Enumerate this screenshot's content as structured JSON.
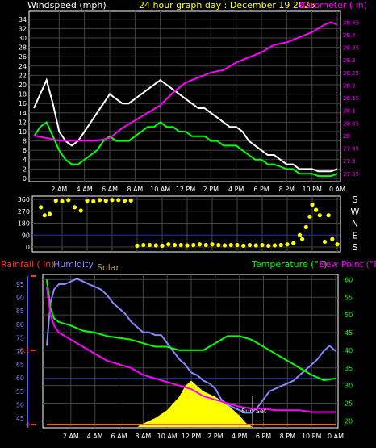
{
  "chart_data": [
    {
      "type": "line",
      "title": "24 hour graph day : December 19 2025",
      "left_axis_label": "Windspeed (mph)",
      "right_axis_label": "Barometer ( in)",
      "x_tick_labels": [
        "2 AM",
        "4 AM",
        "6 AM",
        "8 AM",
        "10 AM",
        "12 PM",
        "2 PM",
        "4 PM",
        "6 PM",
        "8 PM",
        "10 PM",
        "0 AM"
      ],
      "x_hours": [
        2,
        4,
        6,
        8,
        10,
        12,
        14,
        16,
        18,
        20,
        22,
        24
      ],
      "left_ylim": [
        0,
        35
      ],
      "left_ticks": [
        0,
        2,
        4,
        6,
        8,
        10,
        12,
        14,
        16,
        18,
        20,
        22,
        24,
        26,
        28,
        30,
        32,
        34
      ],
      "right_ylim": [
        27.83,
        28.48
      ],
      "right_ticks": [
        27.85,
        27.9,
        27.95,
        28,
        28.05,
        28.1,
        28.15,
        28.2,
        28.25,
        28.3,
        28.35,
        28.4,
        28.45
      ],
      "right_tick_labels": [
        "27.85",
        "27.9",
        "27.95",
        "28",
        "28.05",
        "28.1",
        "28.15",
        "28.2",
        "28.25",
        "28.3",
        "28.35",
        "28.4",
        "28.45"
      ],
      "series": [
        {
          "role": "gust",
          "color": "#ffffff",
          "x": [
            0,
            0.5,
            1,
            1.5,
            2,
            2.5,
            3,
            3.5,
            4,
            4.5,
            5,
            5.5,
            6,
            6.5,
            7,
            7.5,
            8,
            8.5,
            9,
            9.5,
            10,
            10.5,
            11,
            11.5,
            12,
            12.5,
            13,
            13.5,
            14,
            14.5,
            15,
            15.5,
            16,
            16.5,
            17,
            17.5,
            18,
            18.5,
            19,
            19.5,
            20,
            20.5,
            21,
            21.5,
            22,
            22.5,
            23,
            23.5,
            24
          ],
          "y": [
            15,
            18,
            21,
            16,
            10,
            8,
            7,
            8,
            10,
            12,
            14,
            16,
            18,
            17,
            16,
            16,
            17,
            18,
            19,
            20,
            21,
            20,
            19,
            18,
            17,
            16,
            15,
            15,
            14,
            13,
            12,
            11,
            11,
            10,
            8,
            7,
            6,
            5,
            5,
            4,
            3,
            3,
            2,
            2,
            2,
            1.5,
            1.5,
            1.5,
            2
          ]
        },
        {
          "role": "average",
          "color": "#00ff00",
          "x": [
            0,
            0.5,
            1,
            1.5,
            2,
            2.5,
            3,
            3.5,
            4,
            4.5,
            5,
            5.5,
            6,
            6.5,
            7,
            7.5,
            8,
            8.5,
            9,
            9.5,
            10,
            10.5,
            11,
            11.5,
            12,
            12.5,
            13,
            13.5,
            14,
            14.5,
            15,
            15.5,
            16,
            16.5,
            17,
            17.5,
            18,
            18.5,
            19,
            19.5,
            20,
            20.5,
            21,
            21.5,
            22,
            22.5,
            23,
            23.5,
            24
          ],
          "y": [
            9,
            11,
            12,
            9,
            6,
            4,
            3,
            3,
            4,
            5,
            6,
            8,
            9,
            8,
            8,
            8,
            9,
            10,
            11,
            11,
            12,
            11,
            11,
            10,
            10,
            9,
            9,
            9,
            8,
            8,
            7,
            7,
            7,
            6,
            5,
            4,
            4,
            3,
            3,
            2.5,
            2,
            2,
            1,
            1,
            1,
            0.5,
            0.5,
            0.5,
            1
          ]
        },
        {
          "role": "barometer",
          "axis": "right",
          "color": "#ff00ff",
          "x": [
            0,
            1,
            2,
            3,
            4,
            5,
            6,
            7,
            8,
            9,
            10,
            11,
            12,
            13,
            14,
            15,
            16,
            17,
            18,
            19,
            20,
            21,
            22,
            23,
            23.5,
            24
          ],
          "y": [
            28.0,
            27.99,
            27.98,
            27.98,
            27.98,
            27.98,
            27.99,
            28.03,
            28.06,
            28.09,
            28.12,
            28.17,
            28.21,
            28.23,
            28.25,
            28.26,
            28.29,
            28.31,
            28.33,
            28.36,
            28.37,
            28.39,
            28.41,
            28.44,
            28.45,
            28.44
          ]
        }
      ]
    },
    {
      "type": "scatter",
      "title": "",
      "left_ticks": [
        0,
        90,
        180,
        270,
        360
      ],
      "ylim": [
        0,
        360
      ],
      "compass_labels": [
        "S",
        "E",
        "N",
        "W",
        "S"
      ],
      "series": [
        {
          "role": "direction",
          "color": "#ffff00",
          "x": [
            0.3,
            0.6,
            1,
            1.5,
            2,
            2.5,
            3,
            3.5,
            4,
            4.5,
            5,
            5.5,
            6,
            6.5,
            7,
            7.5,
            8,
            8.5,
            9,
            9.5,
            10,
            10.5,
            11,
            11.5,
            12,
            12.5,
            13,
            13.5,
            14,
            14.5,
            15,
            15.5,
            16,
            16.5,
            17,
            17.5,
            18,
            18.5,
            19,
            19.5,
            20,
            20.5,
            21,
            21.2,
            21.5,
            21.8,
            22,
            22.3,
            22.6,
            23,
            23.3,
            23.6,
            24
          ],
          "y": [
            300,
            240,
            250,
            350,
            345,
            355,
            300,
            275,
            350,
            345,
            355,
            350,
            355,
            355,
            350,
            352,
            10,
            15,
            15,
            12,
            10,
            20,
            15,
            15,
            12,
            15,
            20,
            15,
            20,
            15,
            12,
            15,
            15,
            10,
            15,
            12,
            15,
            10,
            12,
            15,
            20,
            30,
            90,
            60,
            150,
            230,
            320,
            280,
            240,
            40,
            240,
            60,
            20
          ]
        }
      ]
    },
    {
      "type": "line",
      "title": "",
      "labels": {
        "rainfall": "Rainfall ( in)",
        "humidity": "Humidity",
        "solar": "Solar",
        "temperature": "Temperature (°F)",
        "dewpoint": "Dew Point (°F)",
        "sunset": "Sun Set"
      },
      "x_tick_labels": [
        "2 AM",
        "4 AM",
        "6 AM",
        "8 AM",
        "10 AM",
        "12 PM",
        "2 PM",
        "4 PM",
        "6 PM",
        "8 PM",
        "10 PM",
        "0 AM"
      ],
      "x_hours": [
        2,
        4,
        6,
        8,
        10,
        12,
        14,
        16,
        18,
        20,
        22,
        24
      ],
      "humidity_ylim": [
        42,
        98
      ],
      "humidity_ticks": [
        45,
        50,
        55,
        60,
        65,
        70,
        75,
        80,
        85,
        90,
        95
      ],
      "temp_ylim": [
        18.5,
        61
      ],
      "temp_ticks": [
        20,
        25,
        30,
        35,
        40,
        45,
        50,
        55,
        60
      ],
      "rain_ticks": [
        {
          "value": 0,
          "label": "0"
        },
        {
          "value": 0.1,
          "label": "0.1"
        },
        {
          "value": 0.2,
          "label": ""
        }
      ],
      "rain_ylim": [
        0,
        0.2
      ],
      "freeze_line_f": 32,
      "sunset_hour": 17.1,
      "rainfall": {
        "x": [
          0,
          24
        ],
        "y": [
          0,
          0
        ]
      },
      "series": [
        {
          "role": "humidity",
          "color": "#8888ff",
          "x": [
            0,
            0.3,
            0.6,
            1,
            1.5,
            2,
            2.5,
            3,
            3.5,
            4,
            4.5,
            5,
            5.5,
            6,
            6.5,
            7,
            7.5,
            8,
            8.5,
            9,
            9.5,
            10,
            10.5,
            11,
            11.5,
            12,
            12.5,
            13,
            13.5,
            14,
            14.5,
            15,
            15.5,
            16,
            16.5,
            17,
            17.5,
            18,
            18.5,
            19,
            19.5,
            20,
            20.5,
            21,
            21.5,
            22,
            22.5,
            23,
            23.5,
            24
          ],
          "y": [
            72,
            88,
            93,
            95,
            95,
            96,
            97,
            96,
            95,
            94,
            93,
            91,
            88,
            86,
            84,
            81,
            79,
            77,
            77,
            76,
            76,
            73,
            70,
            67,
            65,
            62,
            61,
            59,
            58,
            56,
            52,
            50,
            49,
            48,
            47,
            47,
            49,
            52,
            55,
            56,
            57,
            58,
            59,
            61,
            63,
            65,
            67,
            70,
            72,
            70
          ]
        },
        {
          "role": "temperature",
          "color": "#00ff00",
          "x": [
            0,
            0.3,
            0.6,
            1,
            2,
            3,
            4,
            5,
            6,
            7,
            8,
            9,
            10,
            11,
            12,
            13,
            14,
            15,
            16,
            17,
            18,
            19,
            20,
            21,
            22,
            23,
            24
          ],
          "y": [
            60,
            52,
            49,
            48,
            47,
            45.5,
            45,
            44,
            43.5,
            43,
            42,
            41,
            41,
            40,
            40,
            40,
            42,
            44,
            44,
            43,
            41,
            39,
            37,
            35,
            33,
            31.5,
            32
          ]
        },
        {
          "role": "dewpoint",
          "color": "#ff00ff",
          "x": [
            0,
            0.3,
            0.6,
            1,
            2,
            3,
            4,
            5,
            6,
            7,
            8,
            9,
            10,
            11,
            12,
            13,
            14,
            15,
            16,
            17,
            18,
            19,
            20,
            21,
            22,
            23,
            24
          ],
          "y": [
            58,
            50,
            47,
            45,
            43,
            41,
            39,
            37,
            36,
            35,
            33,
            32,
            31,
            30,
            29,
            27,
            26,
            25,
            24,
            23.5,
            23.5,
            23,
            23,
            23,
            22.5,
            22.5,
            22.5
          ]
        },
        {
          "role": "solar",
          "axis": "humidity",
          "color": "#ffff00",
          "x": [
            7.6,
            8,
            9,
            10,
            11,
            11.5,
            12,
            12.5,
            13,
            14,
            15,
            16,
            16.6,
            17
          ],
          "y": [
            42,
            43,
            45,
            48,
            53,
            57,
            59,
            57,
            55,
            53,
            50,
            46,
            43,
            42
          ]
        }
      ]
    }
  ]
}
